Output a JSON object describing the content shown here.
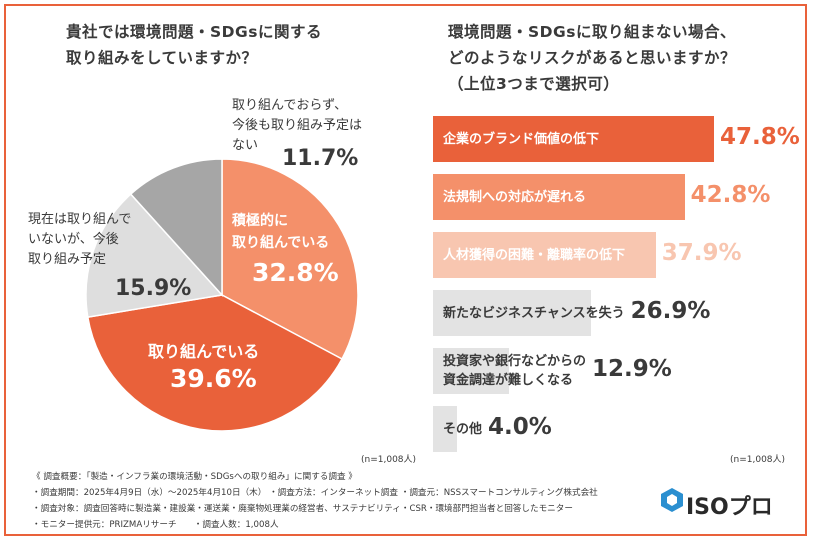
{
  "left": {
    "title_line1": "貴社では環境問題・SDGsに関する",
    "title_line2": "取り組みをしていますか？",
    "note": "(n=1,008人)"
  },
  "right": {
    "title_line1": "環境問題・SDGsに取り組まない場合、",
    "title_line2": "どのようなリスクがあると思いますか？",
    "title_line3": "（上位3つまで選択可）",
    "note": "(n=1,008人)"
  },
  "footer": {
    "line1": "《 調査概要：「製造・インフラ業の環境活動・SDGsへの取り組み」に関する調査 》",
    "line2": "・調査期間：2025年4月9日（水）〜2025年4月10日（木） ・調査方法：インターネット調査 ・調査元：NSSスマートコンサルティング株式会社",
    "line3": "・調査対象：調査回答時に製造業・建設業・運送業・廃棄物処理業の経営者、サステナビリティ・CSR・環境部門担当者と回答したモニター",
    "line4": "・モニター提供元：PRIZMAリサーチ　　・調査人数：1,008人"
  },
  "logo": {
    "text": "ISOプロ",
    "icon": "hexagon-ring-icon",
    "color": "#2b8fd0"
  },
  "colors": {
    "accent": "#e9613a",
    "frame": "#e9613a"
  },
  "chart_data": [
    {
      "type": "pie",
      "slices": [
        {
          "label_line1": "積極的に",
          "label_line2": "取り組んでいる",
          "value": 32.8,
          "value_label": "32.8%",
          "color": "#f4906a"
        },
        {
          "label_line1": "取り組んでいる",
          "label_line2": "",
          "value": 39.6,
          "value_label": "39.6%",
          "color": "#e9613a"
        },
        {
          "label_line1": "現在は取り組んで",
          "label_line2": "いないが、今後",
          "label_line3": "取り組み予定",
          "value": 15.9,
          "value_label": "15.9%",
          "color": "#dedede"
        },
        {
          "label_line1": "取り組んでおらず、",
          "label_line2": "今後も取り組み予定は",
          "label_line3": "ない",
          "value": 11.7,
          "value_label": "11.7%",
          "color": "#a6a6a6"
        }
      ]
    },
    {
      "type": "bar",
      "orientation": "horizontal",
      "categories": [
        [
          "企業のブランド価値の低下"
        ],
        [
          "法規制への対応が遅れる"
        ],
        [
          "人材獲得の困難・離職率の低下"
        ],
        [
          "新たなビジネスチャンスを失う"
        ],
        [
          "投資家や銀行などからの",
          "資金調達が難しくなる"
        ],
        [
          "その他"
        ]
      ],
      "values": [
        47.8,
        42.8,
        37.9,
        26.9,
        12.9,
        4.0
      ],
      "value_labels": [
        "47.8%",
        "42.8%",
        "37.9%",
        "26.9%",
        "12.9%",
        "4.0%"
      ],
      "colors": [
        "#e9613a",
        "#f4906a",
        "#f8c6b0",
        "#e3e3e3",
        "#e3e3e3",
        "#e3e3e3"
      ],
      "value_colors": [
        "#e9613a",
        "#f4906a",
        "#f8c6b0",
        "#3a3a3a",
        "#3a3a3a",
        "#3a3a3a"
      ],
      "label_colors": [
        "#ffffff",
        "#ffffff",
        "#ffffff",
        "#3a3a3a",
        "#3a3a3a",
        "#3a3a3a"
      ]
    }
  ]
}
